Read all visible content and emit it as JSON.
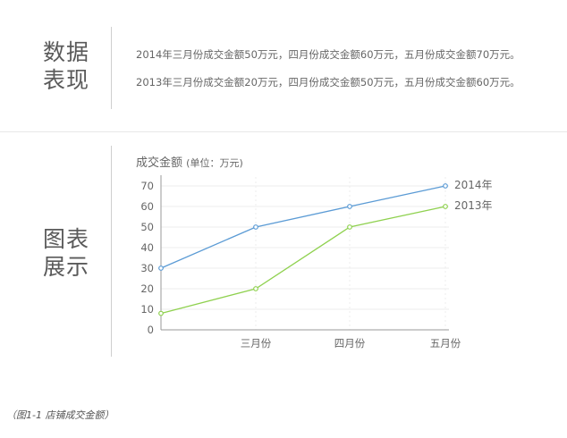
{
  "section_data": {
    "label_line1": "数据",
    "label_line2": "表现"
  },
  "stats": [
    "2014年三月份成交金额50万元，四月份成交金额60万元，五月份成交金额70万元。",
    "2013年三月份成交金额20万元，四月份成交金额50万元，五月份成交金额60万元。"
  ],
  "section_chart": {
    "label_line1": "图表",
    "label_line2": "展示"
  },
  "caption": "（图1-1 店铺成交金额）",
  "colors": {
    "series_2014": "#5b9bd5",
    "series_2013": "#8fd14f",
    "axis": "#999999",
    "grid": "#ededed"
  },
  "chart_data": {
    "type": "line",
    "title": "成交金额",
    "unit_label": "(单位：万元)",
    "categories": [
      "",
      "三月份",
      "四月份",
      "五月份"
    ],
    "yticks": [
      0,
      10,
      20,
      30,
      40,
      50,
      60,
      70
    ],
    "ylim": [
      0,
      70
    ],
    "xlabel": "",
    "ylabel": "",
    "series": [
      {
        "name": "2014年",
        "values": [
          30,
          50,
          60,
          70
        ]
      },
      {
        "name": "2013年",
        "values": [
          8,
          20,
          50,
          60
        ]
      }
    ],
    "legend": "right-of-line-ends"
  }
}
